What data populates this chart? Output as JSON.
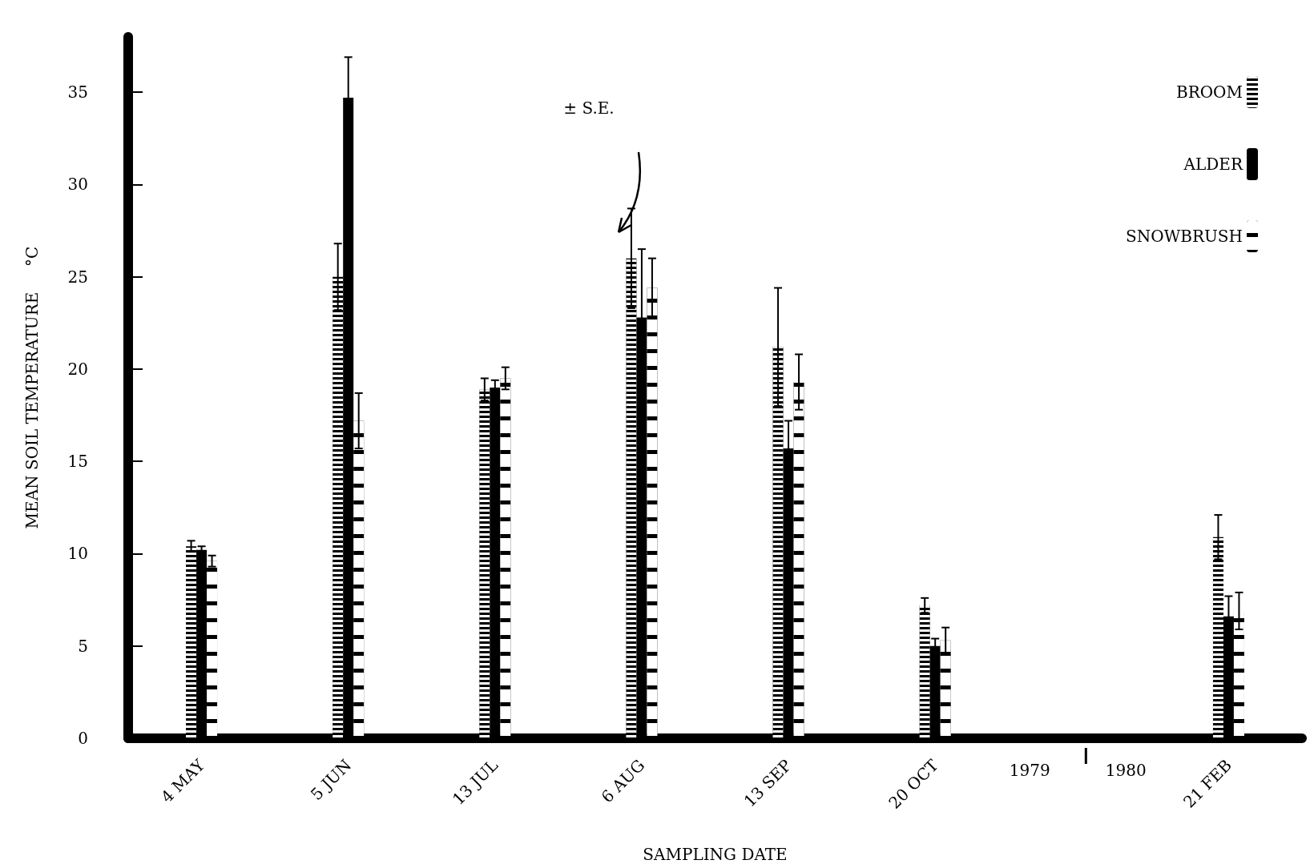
{
  "chart_data": {
    "type": "bar",
    "xlabel": "SAMPLING DATE",
    "ylabel": "MEAN SOIL TEMPERATURE     °C",
    "categories": [
      "4 MAY",
      "5 JUN",
      "13 JUL",
      "6 AUG",
      "13 SEP",
      "20 OCT",
      null,
      "21 FEB"
    ],
    "series": [
      {
        "name": "BROOM",
        "color": "#000000",
        "values": [
          10.4,
          25.0,
          18.9,
          26.0,
          21.2,
          7.2,
          null,
          10.9
        ],
        "errors": [
          0.3,
          1.8,
          0.6,
          2.7,
          3.2,
          0.4,
          null,
          1.2
        ]
      },
      {
        "name": "ALDER",
        "color": "#000000",
        "values": [
          10.2,
          34.7,
          19.0,
          22.8,
          15.7,
          5.0,
          null,
          6.6
        ],
        "errors": [
          0.2,
          2.2,
          0.4,
          3.7,
          1.5,
          0.4,
          null,
          1.1
        ]
      },
      {
        "name": "SNOWBRUSH",
        "color": "#000000",
        "values": [
          9.6,
          17.2,
          19.5,
          24.4,
          19.3,
          5.3,
          null,
          6.9
        ],
        "errors": [
          0.3,
          1.5,
          0.6,
          1.6,
          1.5,
          0.7,
          null,
          1.0
        ]
      }
    ],
    "ylim": [
      0,
      38
    ],
    "yticks": [
      0,
      5,
      10,
      15,
      20,
      25,
      30,
      35
    ],
    "grid": false,
    "legend": "top right",
    "annotations": [
      "± S.E.",
      "1979",
      "1980"
    ]
  }
}
